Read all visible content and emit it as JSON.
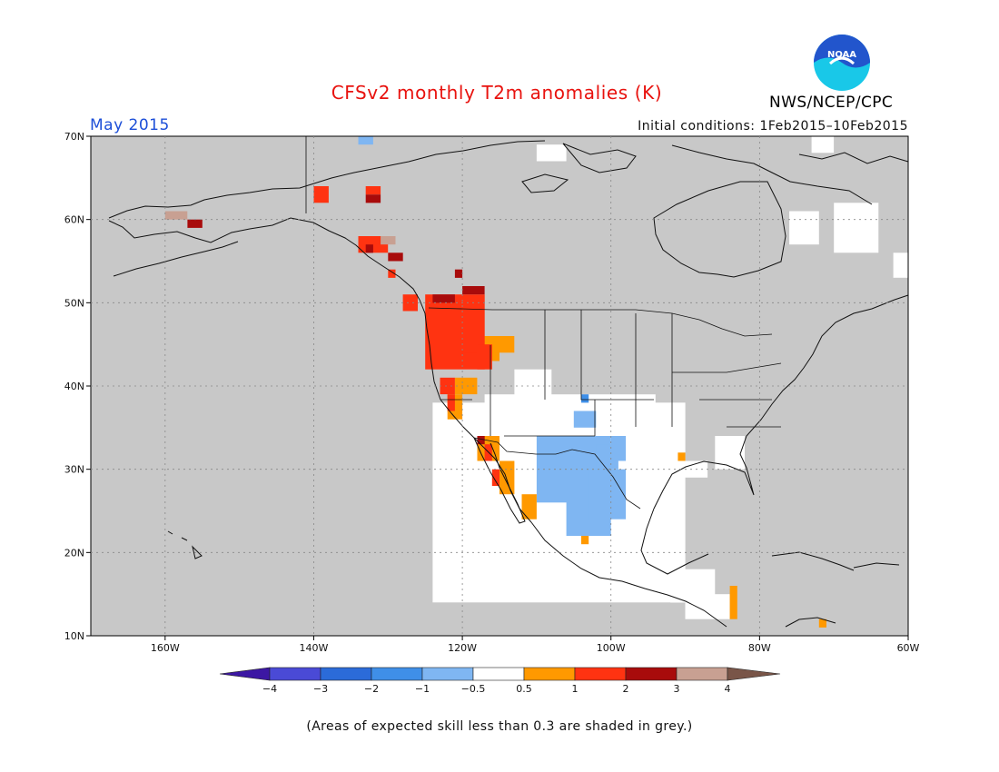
{
  "header": {
    "title": "CFSv2 monthly T2m anomalies (K)",
    "month": "May 2015",
    "initial_conditions": "Initial conditions: 1Feb2015–10Feb2015",
    "agency": "NWS/NCEP/CPC",
    "logo_text": "NOAA"
  },
  "map": {
    "lat_labels": [
      "70N",
      "60N",
      "50N",
      "40N",
      "30N",
      "20N",
      "10N"
    ],
    "lon_labels": [
      "160W",
      "140W",
      "120W",
      "100W",
      "80W",
      "60W"
    ],
    "lon_range": [
      -170,
      -60
    ],
    "lat_range": [
      10,
      70
    ],
    "background_color": "#c8c8c8"
  },
  "legend": {
    "labels": [
      "−4",
      "−3",
      "−2",
      "−1",
      "−0.5",
      "0.5",
      "1",
      "2",
      "3",
      "4"
    ],
    "colors": [
      "#3c17a3",
      "#4a4ad6",
      "#2b6bd9",
      "#3f8fe8",
      "#7fb6f2",
      "#ffffff",
      "#ff9900",
      "#ff3311",
      "#a80b0b",
      "#c8a092",
      "#795548"
    ],
    "note": "(Areas of expected skill less than 0.3 are shaded in grey.)"
  }
}
